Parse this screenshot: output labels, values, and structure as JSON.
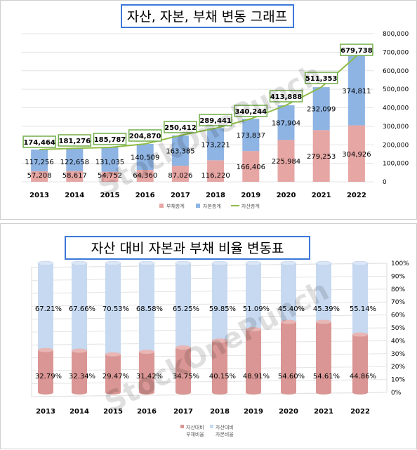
{
  "charts": [
    {
      "title": "자산, 자본, 부채 변동 그래프",
      "watermark": "StockOnePunch",
      "colors": {
        "debt": "#e6a6a4",
        "equity": "#8eb4e3",
        "assets": "#8fbc45"
      },
      "chart_data": {
        "type": "bar",
        "categories": [
          "2013",
          "2014",
          "2015",
          "2016",
          "2017",
          "2018",
          "2019",
          "2020",
          "2021",
          "2022"
        ],
        "series": [
          {
            "name": "부채총계",
            "values": [
              57208,
              58617,
              54752,
              64360,
              87026,
              116220,
              166406,
              225984,
              279253,
              304926
            ]
          },
          {
            "name": "자본총계",
            "values": [
              117256,
              122658,
              131035,
              140509,
              163385,
              173221,
              173837,
              187904,
              232099,
              374811
            ]
          },
          {
            "name": "자산총계",
            "values": [
              174464,
              181276,
              185787,
              204870,
              250412,
              289441,
              340244,
              413888,
              511353,
              679738
            ]
          }
        ],
        "labels": {
          "debt": [
            "57,208",
            "58,617",
            "54,752",
            "64,360",
            "87,026",
            "116,220",
            "166,406",
            "225,984",
            "279,253",
            "304,926"
          ],
          "equity": [
            "117,256",
            "122,658",
            "131,035",
            "140,509",
            "163,385",
            "173,221",
            "173,837",
            "187,904",
            "232,099",
            "374,811"
          ],
          "assets": [
            "174,464",
            "181,276",
            "185,787",
            "204,870",
            "250,412",
            "289,441",
            "340,244",
            "413,888",
            "511,353",
            "679,738"
          ]
        },
        "y_ticks": [
          "0",
          "100,000",
          "200,000",
          "300,000",
          "400,000",
          "500,000",
          "600,000",
          "700,000",
          "800,000"
        ],
        "ylim": [
          0,
          800000
        ],
        "legend_position": "bottom",
        "grid": true
      }
    },
    {
      "title": "자산 대비 자본과 부채 비율 변동표",
      "watermark": "StockOnePunch",
      "colors": {
        "debt": "#d99694",
        "equity": "#c6d9f1"
      },
      "chart_data": {
        "type": "bar",
        "stacked": true,
        "categories": [
          "2013",
          "2014",
          "2015",
          "2016",
          "2017",
          "2018",
          "2019",
          "2020",
          "2021",
          "2022"
        ],
        "series": [
          {
            "name": "자산대비 부채비율",
            "values": [
              32.79,
              32.34,
              29.47,
              31.42,
              34.75,
              40.15,
              48.91,
              54.6,
              54.61,
              44.86
            ]
          },
          {
            "name": "자산대비 자본비율",
            "values": [
              67.21,
              67.66,
              70.53,
              68.58,
              65.25,
              59.85,
              51.09,
              45.4,
              45.39,
              55.14
            ]
          }
        ],
        "labels": {
          "debt": [
            "32.79%",
            "32.34%",
            "29.47%",
            "31.42%",
            "34.75%",
            "40.15%",
            "48.91%",
            "54.60%",
            "54.61%",
            "44.86%"
          ],
          "equity": [
            "67.21%",
            "67.66%",
            "70.53%",
            "68.58%",
            "65.25%",
            "59.85%",
            "51.09%",
            "45.40%",
            "45.39%",
            "55.14%"
          ]
        },
        "y_ticks": [
          "0%",
          "10%",
          "20%",
          "30%",
          "40%",
          "50%",
          "60%",
          "70%",
          "80%",
          "90%",
          "100%"
        ],
        "ylim": [
          0,
          100
        ],
        "legend_position": "bottom",
        "legend_lines": {
          "debt": [
            "자산대비",
            "부채비율"
          ],
          "equity": [
            "자산대비",
            "자본비율"
          ]
        },
        "grid": true
      }
    }
  ]
}
